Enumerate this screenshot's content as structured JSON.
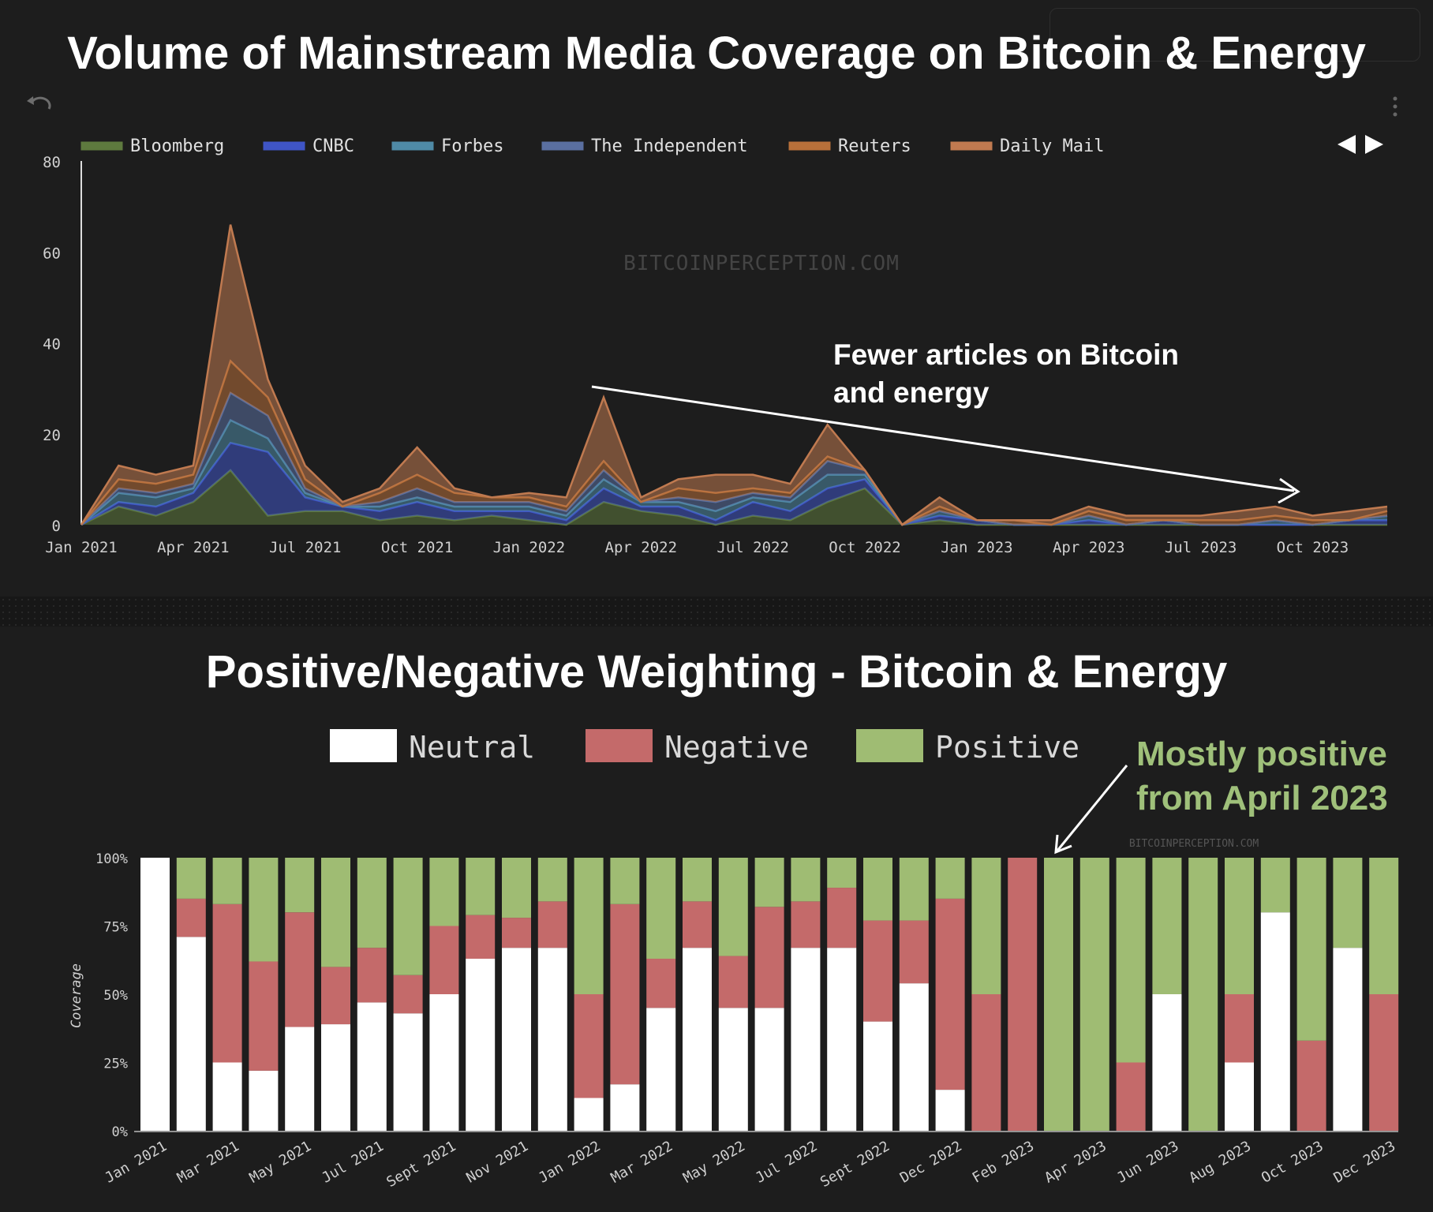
{
  "colors": {
    "background": "#1d1d1d",
    "axis_text": "#d0d0d0",
    "neutral": "#ffffff",
    "negative": "#c46a6a",
    "positive": "#9fbc73",
    "annotation_green": "#9fc07a"
  },
  "icons": {
    "undo": "undo-icon",
    "menu": "vertical-ellipsis-icon",
    "prev": "triangle-left-icon",
    "next": "triangle-right-icon"
  },
  "top_panel": {
    "title": "Volume of Mainstream Media Coverage on Bitcoin & Energy",
    "annotation": [
      "Fewer articles on Bitcoin",
      "and energy"
    ]
  },
  "bottom_panel": {
    "title": "Positive/Negative Weighting - Bitcoin & Energy",
    "annotation": [
      "Mostly positive",
      "from April 2023"
    ]
  },
  "chart_data": [
    {
      "type": "area",
      "stacked": true,
      "watermark": "BITCOINPERCEPTION.COM",
      "ylim": [
        0,
        80
      ],
      "yticks": [
        0,
        20,
        40,
        60,
        80
      ],
      "grid": false,
      "legend_position": "top",
      "xticklabels": [
        "Jan 2021",
        "Apr 2021",
        "Jul 2021",
        "Oct 2021",
        "Jan 2022",
        "Apr 2022",
        "Jul 2022",
        "Oct 2022",
        "Jan 2023",
        "Apr 2023",
        "Jul 2023",
        "Oct 2023"
      ],
      "xtick_month_index": [
        0,
        3,
        6,
        9,
        12,
        15,
        18,
        21,
        24,
        27,
        30,
        33
      ],
      "x": [
        "2021-01",
        "2021-02",
        "2021-03",
        "2021-04",
        "2021-05",
        "2021-06",
        "2021-07",
        "2021-08",
        "2021-09",
        "2021-10",
        "2021-11",
        "2021-12",
        "2022-01",
        "2022-02",
        "2022-03",
        "2022-04",
        "2022-05",
        "2022-06",
        "2022-07",
        "2022-08",
        "2022-09",
        "2022-10",
        "2022-11",
        "2022-12",
        "2023-01",
        "2023-02",
        "2023-03",
        "2023-04",
        "2023-05",
        "2023-06",
        "2023-07",
        "2023-08",
        "2023-09",
        "2023-10",
        "2023-11",
        "2023-12"
      ],
      "series": [
        {
          "name": "Bloomberg",
          "color": "#5e7a3e",
          "values": [
            0,
            4,
            2,
            5,
            12,
            2,
            3,
            3,
            1,
            2,
            1,
            2,
            1,
            0,
            5,
            3,
            2,
            0,
            2,
            1,
            5,
            8,
            0,
            1,
            0,
            0,
            0,
            0,
            0,
            0,
            0,
            0,
            0,
            0,
            0,
            0
          ]
        },
        {
          "name": "CNBC",
          "color": "#3f55c6",
          "values": [
            0,
            1,
            2,
            2,
            6,
            14,
            3,
            1,
            2,
            3,
            2,
            1,
            2,
            1,
            3,
            1,
            2,
            1,
            3,
            2,
            3,
            2,
            0,
            1,
            1,
            0,
            0,
            1,
            0,
            1,
            0,
            0,
            0,
            0,
            1,
            1
          ]
        },
        {
          "name": "Forbes",
          "color": "#4f8aa6",
          "values": [
            0,
            2,
            2,
            1,
            5,
            3,
            1,
            0,
            1,
            1,
            1,
            1,
            1,
            1,
            2,
            1,
            1,
            2,
            1,
            2,
            3,
            1,
            0,
            1,
            0,
            0,
            0,
            1,
            0,
            0,
            0,
            0,
            1,
            0,
            0,
            1
          ]
        },
        {
          "name": "The Independent",
          "color": "#5a6fa0",
          "values": [
            0,
            1,
            1,
            1,
            6,
            5,
            1,
            0,
            1,
            2,
            1,
            1,
            1,
            1,
            2,
            0,
            1,
            2,
            1,
            1,
            3,
            1,
            0,
            0,
            0,
            0,
            0,
            0,
            0,
            0,
            0,
            0,
            0,
            0,
            0,
            0
          ]
        },
        {
          "name": "Reuters",
          "color": "#b8703a",
          "values": [
            0,
            2,
            2,
            2,
            7,
            4,
            2,
            0,
            2,
            3,
            2,
            1,
            1,
            1,
            2,
            0,
            2,
            2,
            1,
            1,
            1,
            0,
            0,
            1,
            0,
            1,
            0,
            1,
            1,
            0,
            1,
            1,
            1,
            1,
            0,
            1
          ]
        },
        {
          "name": "Daily Mail",
          "color": "#c07a50",
          "values": [
            0,
            3,
            2,
            2,
            30,
            4,
            3,
            1,
            1,
            6,
            1,
            0,
            1,
            2,
            14,
            1,
            2,
            4,
            3,
            2,
            7,
            0,
            0,
            2,
            0,
            0,
            1,
            1,
            1,
            1,
            1,
            2,
            2,
            1,
            2,
            1
          ]
        }
      ]
    },
    {
      "type": "bar",
      "stacked": true,
      "watermark": "BITCOINPERCEPTION.COM",
      "ylabel": "Coverage",
      "ylim": [
        0,
        100
      ],
      "yticklabels": [
        "0%",
        "25%",
        "50%",
        "75%",
        "100%"
      ],
      "legend_position": "top",
      "xticklabels": [
        "Jan 2021",
        "Mar 2021",
        "May 2021",
        "Jul 2021",
        "Sept 2021",
        "Nov 2021",
        "Jan 2022",
        "Mar 2022",
        "May 2022",
        "Jul 2022",
        "Sept 2022",
        "Dec 2022",
        "Feb 2023",
        "Apr 2023",
        "Jun 2023",
        "Aug 2023",
        "Oct 2023",
        "Dec 2023"
      ],
      "xtick_bar_index": [
        0,
        2,
        4,
        6,
        8,
        10,
        12,
        14,
        16,
        18,
        20,
        22,
        24,
        26,
        28,
        30,
        32,
        34
      ],
      "series": [
        {
          "name": "Neutral",
          "color": "#ffffff",
          "values": [
            100,
            71,
            25,
            22,
            38,
            39,
            47,
            43,
            50,
            63,
            67,
            67,
            12,
            17,
            45,
            67,
            45,
            45,
            67,
            67,
            40,
            54,
            15,
            0,
            0,
            0,
            0,
            0,
            50,
            0,
            25,
            80,
            0,
            67,
            0
          ]
        },
        {
          "name": "Negative",
          "color": "#c46a6a",
          "values": [
            0,
            14,
            58,
            40,
            42,
            21,
            20,
            14,
            25,
            16,
            11,
            17,
            38,
            66,
            18,
            17,
            19,
            37,
            17,
            22,
            37,
            23,
            70,
            50,
            100,
            0,
            0,
            25,
            0,
            0,
            25,
            0,
            33,
            0,
            50
          ]
        },
        {
          "name": "Positive",
          "color": "#9fbc73",
          "values": [
            0,
            15,
            17,
            38,
            20,
            40,
            33,
            43,
            25,
            21,
            22,
            16,
            50,
            17,
            37,
            16,
            36,
            18,
            16,
            11,
            23,
            23,
            15,
            50,
            0,
            100,
            100,
            75,
            50,
            100,
            50,
            20,
            67,
            33,
            50
          ]
        }
      ]
    }
  ]
}
